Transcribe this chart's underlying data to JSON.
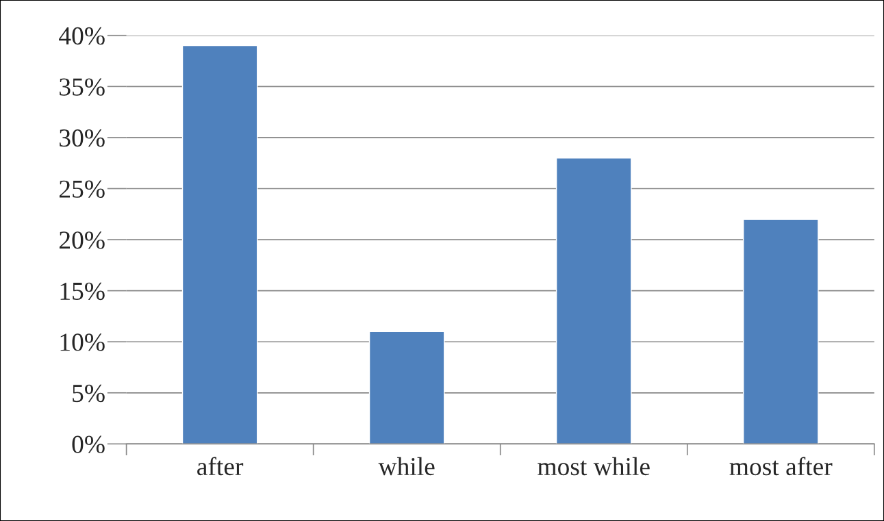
{
  "chart_data": {
    "type": "bar",
    "categories": [
      "after",
      "while",
      "most while",
      "most after"
    ],
    "values": [
      39,
      11,
      28,
      22
    ],
    "color": "#4f81bd",
    "ylim": [
      0,
      40
    ],
    "yticks": [
      {
        "value": 0,
        "label": "0%"
      },
      {
        "value": 5,
        "label": "5%"
      },
      {
        "value": 10,
        "label": "10%"
      },
      {
        "value": 15,
        "label": "15%"
      },
      {
        "value": 20,
        "label": "20%"
      },
      {
        "value": 25,
        "label": "25%"
      },
      {
        "value": 30,
        "label": "30%"
      },
      {
        "value": 35,
        "label": "35%"
      },
      {
        "value": 40,
        "label": "40%"
      }
    ],
    "grid": "y"
  }
}
